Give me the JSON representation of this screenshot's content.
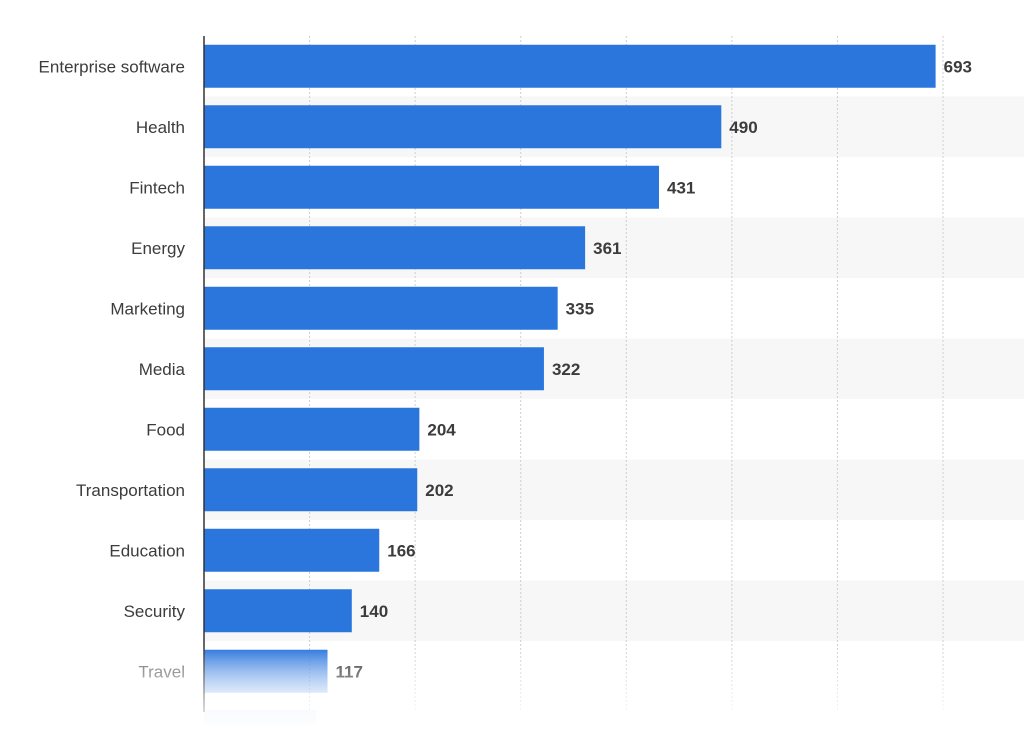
{
  "chart_data": {
    "type": "bar",
    "orientation": "horizontal",
    "categories": [
      "Enterprise software",
      "Health",
      "Fintech",
      "Energy",
      "Marketing",
      "Media",
      "Food",
      "Transportation",
      "Education",
      "Security",
      "Travel"
    ],
    "values": [
      693,
      490,
      431,
      361,
      335,
      322,
      204,
      202,
      166,
      140,
      117
    ],
    "xlim": [
      0,
      700
    ],
    "grid": true,
    "legend": "none",
    "colors": {
      "bar": "#2a76dd",
      "band": "#f7f7f7",
      "grid": "#cfcfcf",
      "axis": "#333333",
      "text": "#3c3c3c"
    }
  }
}
